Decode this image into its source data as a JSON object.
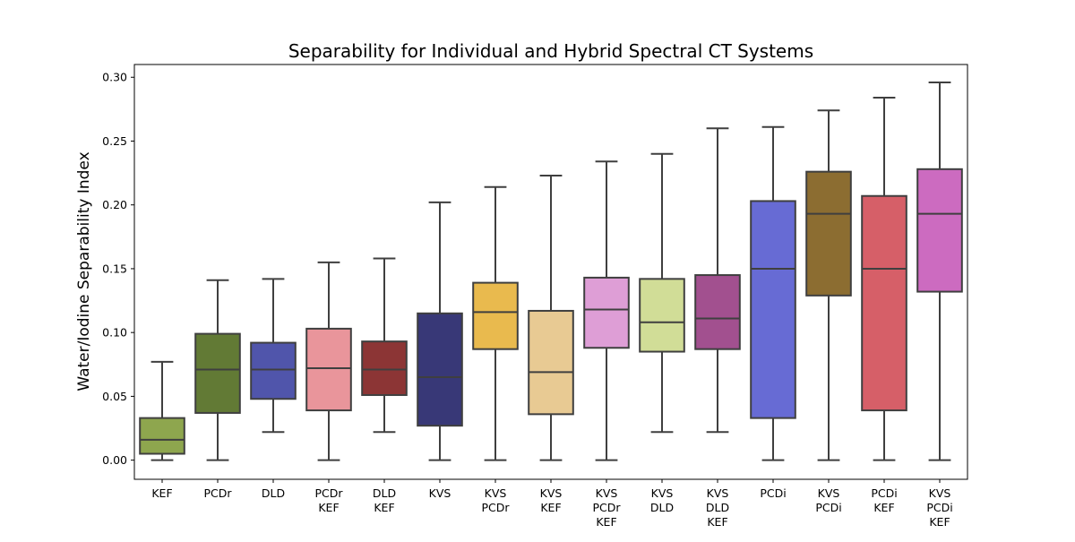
{
  "chart_data": {
    "type": "box",
    "title": "Separability for Individual and Hybrid Spectral CT Systems",
    "xlabel": "",
    "ylabel": "Water/Iodine Separability Index",
    "ylim": [
      -0.015,
      0.31
    ],
    "yticks": [
      0.0,
      0.05,
      0.1,
      0.15,
      0.2,
      0.25,
      0.3
    ],
    "ytick_labels": [
      "0.00",
      "0.05",
      "0.10",
      "0.15",
      "0.20",
      "0.25",
      "0.30"
    ],
    "grid": false,
    "categories": [
      [
        "KEF"
      ],
      [
        "PCDr"
      ],
      [
        "DLD"
      ],
      [
        "PCDr",
        "KEF"
      ],
      [
        "DLD",
        "KEF"
      ],
      [
        "KVS"
      ],
      [
        "KVS",
        "PCDr"
      ],
      [
        "KVS",
        "KEF"
      ],
      [
        "KVS",
        "PCDr",
        "KEF"
      ],
      [
        "KVS",
        "DLD"
      ],
      [
        "KVS",
        "DLD",
        "KEF"
      ],
      [
        "PCDi"
      ],
      [
        "KVS",
        "PCDi"
      ],
      [
        "PCDi",
        "KEF"
      ],
      [
        "KVS",
        "PCDi",
        "KEF"
      ]
    ],
    "boxes": [
      {
        "min": 0.0,
        "q1": 0.005,
        "median": 0.016,
        "q3": 0.033,
        "max": 0.077,
        "color": "#8ea64e"
      },
      {
        "min": 0.0,
        "q1": 0.037,
        "median": 0.071,
        "q3": 0.099,
        "max": 0.141,
        "color": "#627a35"
      },
      {
        "min": 0.022,
        "q1": 0.048,
        "median": 0.071,
        "q3": 0.092,
        "max": 0.142,
        "color": "#5055ab"
      },
      {
        "min": 0.0,
        "q1": 0.039,
        "median": 0.072,
        "q3": 0.103,
        "max": 0.155,
        "color": "#e9959b"
      },
      {
        "min": 0.022,
        "q1": 0.051,
        "median": 0.071,
        "q3": 0.093,
        "max": 0.158,
        "color": "#8c3535"
      },
      {
        "min": 0.0,
        "q1": 0.027,
        "median": 0.065,
        "q3": 0.115,
        "max": 0.202,
        "color": "#383877"
      },
      {
        "min": 0.0,
        "q1": 0.087,
        "median": 0.116,
        "q3": 0.139,
        "max": 0.214,
        "color": "#e9ba4e"
      },
      {
        "min": 0.0,
        "q1": 0.036,
        "median": 0.069,
        "q3": 0.117,
        "max": 0.223,
        "color": "#e8ca93"
      },
      {
        "min": 0.0,
        "q1": 0.088,
        "median": 0.118,
        "q3": 0.143,
        "max": 0.234,
        "color": "#de9ed6"
      },
      {
        "min": 0.022,
        "q1": 0.085,
        "median": 0.108,
        "q3": 0.142,
        "max": 0.24,
        "color": "#d1dd97"
      },
      {
        "min": 0.022,
        "q1": 0.087,
        "median": 0.111,
        "q3": 0.145,
        "max": 0.26,
        "color": "#a2508f"
      },
      {
        "min": 0.0,
        "q1": 0.033,
        "median": 0.15,
        "q3": 0.203,
        "max": 0.261,
        "color": "#676bd4"
      },
      {
        "min": 0.0,
        "q1": 0.129,
        "median": 0.193,
        "q3": 0.226,
        "max": 0.274,
        "color": "#8c6d31"
      },
      {
        "min": 0.0,
        "q1": 0.039,
        "median": 0.15,
        "q3": 0.207,
        "max": 0.284,
        "color": "#d65f68"
      },
      {
        "min": 0.0,
        "q1": 0.132,
        "median": 0.193,
        "q3": 0.228,
        "max": 0.296,
        "color": "#cc6bc0"
      }
    ]
  }
}
